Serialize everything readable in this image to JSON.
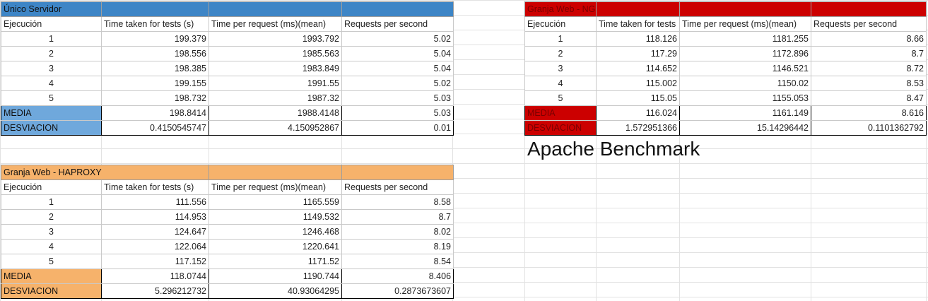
{
  "colors": {
    "blue_header": "#3d85c6",
    "blue_stat": "#6fa8dc",
    "red": "#cc0000",
    "orange": "#f6b26b"
  },
  "tables": {
    "unico": {
      "title": "Único Servidor",
      "headers": [
        "Ejecución",
        "Time taken for tests (s)",
        "Time per request (ms)(mean)",
        "Requests per second"
      ],
      "rows": [
        [
          "1",
          "199.379",
          "1993.792",
          "5.02"
        ],
        [
          "2",
          "198.556",
          "1985.563",
          "5.04"
        ],
        [
          "3",
          "198.385",
          "1983.849",
          "5.04"
        ],
        [
          "4",
          "199.155",
          "1991.55",
          "5.02"
        ],
        [
          "5",
          "198.732",
          "1987.32",
          "5.03"
        ]
      ],
      "media": {
        "label": "MEDIA",
        "values": [
          "198.8414",
          "1988.4148",
          "5.03"
        ]
      },
      "desviacion": {
        "label": "DESVIACION",
        "values": [
          "0.4150545747",
          "4.150952867",
          "0.01"
        ]
      }
    },
    "nginx": {
      "title": "Granja Web - NGINX",
      "headers": [
        "Ejecución",
        "Time taken for tests",
        "Time per request (ms)(mean)",
        "Requests per second"
      ],
      "rows": [
        [
          "1",
          "118.126",
          "1181.255",
          "8.66"
        ],
        [
          "2",
          "117.29",
          "1172.896",
          "8.7"
        ],
        [
          "3",
          "114.652",
          "1146.521",
          "8.72"
        ],
        [
          "4",
          "115.002",
          "1150.02",
          "8.53"
        ],
        [
          "5",
          "115.05",
          "1155.053",
          "8.47"
        ]
      ],
      "media": {
        "label": "MEDIA",
        "values": [
          "116.024",
          "1161.149",
          "8.616"
        ]
      },
      "desviacion": {
        "label": "DESVIACION",
        "values": [
          "1.572951366",
          "15.14296442",
          "0.1101362792"
        ]
      }
    },
    "haproxy": {
      "title": "Granja Web - HAPROXY",
      "headers": [
        "Ejecución",
        "Time taken for tests (s)",
        "Time per request (ms)(mean)",
        "Requests per second"
      ],
      "rows": [
        [
          "1",
          "111.556",
          "1165.559",
          "8.58"
        ],
        [
          "2",
          "114.953",
          "1149.532",
          "8.7"
        ],
        [
          "3",
          "124.647",
          "1246.468",
          "8.02"
        ],
        [
          "4",
          "122.064",
          "1220.641",
          "8.19"
        ],
        [
          "5",
          "117.152",
          "1171.52",
          "8.54"
        ]
      ],
      "media": {
        "label": "MEDIA",
        "values": [
          "118.0744",
          "1190.744",
          "8.406"
        ]
      },
      "desviacion": {
        "label": "DESVIACION",
        "values": [
          "5.296212732",
          "40.93064295",
          "0.2873673607"
        ]
      }
    }
  },
  "overlay": {
    "title": "Apache Benchmark"
  }
}
